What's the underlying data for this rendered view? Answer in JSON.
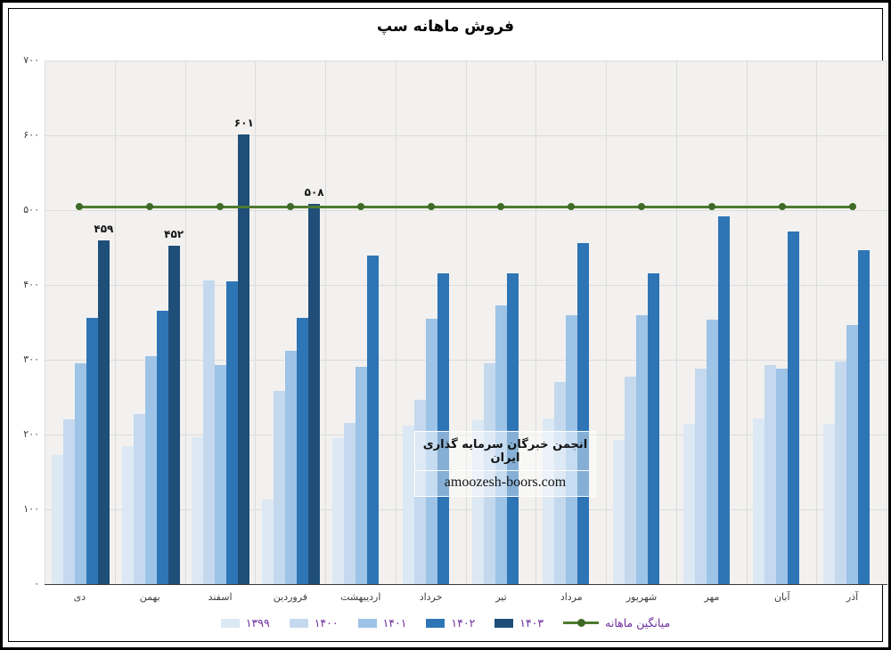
{
  "title": "فروش ماهانه سپ",
  "watermark": {
    "line1": "انجمن خبرگان سرمایه گذاری ایران",
    "line2": "amoozesh-boors.com"
  },
  "colors": {
    "plot_background": "#f2f1ef",
    "gridline": "#dcdcdc",
    "axis_text": "#404040",
    "legend_text": "#7030a0",
    "data_label_text": "#151515",
    "average_line": "#4e7b2f",
    "average_dot": "#3d6a26",
    "frame": "#000000"
  },
  "axis": {
    "y_ticks": [
      {
        "label": "۷۰۰",
        "value": 700
      },
      {
        "label": "۶۰۰",
        "value": 600
      },
      {
        "label": "۵۰۰",
        "value": 500
      },
      {
        "label": "۴۰۰",
        "value": 400
      },
      {
        "label": "۳۰۰",
        "value": 300
      },
      {
        "label": "۲۰۰",
        "value": 200
      },
      {
        "label": "۱۰۰",
        "value": 100
      },
      {
        "label": "۰",
        "value": 0
      }
    ]
  },
  "chart_data": {
    "type": "bar",
    "title": "فروش ماهانه سپ",
    "xlabel": "",
    "ylabel": "",
    "ylim": [
      0,
      700
    ],
    "grid": true,
    "legend_position": "bottom",
    "categories": [
      "دی",
      "بهمن",
      "اسفند",
      "فروردین",
      "اردیبهشت",
      "خرداد",
      "تیر",
      "مرداد",
      "شهریور",
      "مهر",
      "آبان",
      "آذر"
    ],
    "series": [
      {
        "name": "۱۳۹۹",
        "color": "#dce8f4",
        "values": [
          173,
          185,
          197,
          113,
          195,
          212,
          219,
          222,
          193,
          214,
          222,
          214
        ]
      },
      {
        "name": "۱۴۰۰",
        "color": "#c5d9ee",
        "values": [
          220,
          227,
          406,
          258,
          216,
          246,
          295,
          270,
          277,
          288,
          293,
          298
        ]
      },
      {
        "name": "۱۴۰۱",
        "color": "#9dc3e6",
        "values": [
          295,
          305,
          293,
          312,
          291,
          355,
          373,
          360,
          360,
          353,
          288,
          347
        ]
      },
      {
        "name": "۱۴۰۲",
        "color": "#2e75b6",
        "values": [
          356,
          365,
          405,
          356,
          439,
          415,
          415,
          456,
          415,
          492,
          472,
          447
        ]
      },
      {
        "name": "۱۴۰۳",
        "color": "#1f4e79",
        "values": [
          459,
          452,
          601,
          508,
          null,
          null,
          null,
          null,
          null,
          null,
          null,
          null
        ],
        "data_labels": [
          "۴۵۹",
          "۴۵۲",
          "۶۰۱",
          "۵۰۸",
          null,
          null,
          null,
          null,
          null,
          null,
          null,
          null
        ]
      }
    ],
    "average_line": {
      "label": "میانگین ماهانه",
      "value": 505
    }
  }
}
